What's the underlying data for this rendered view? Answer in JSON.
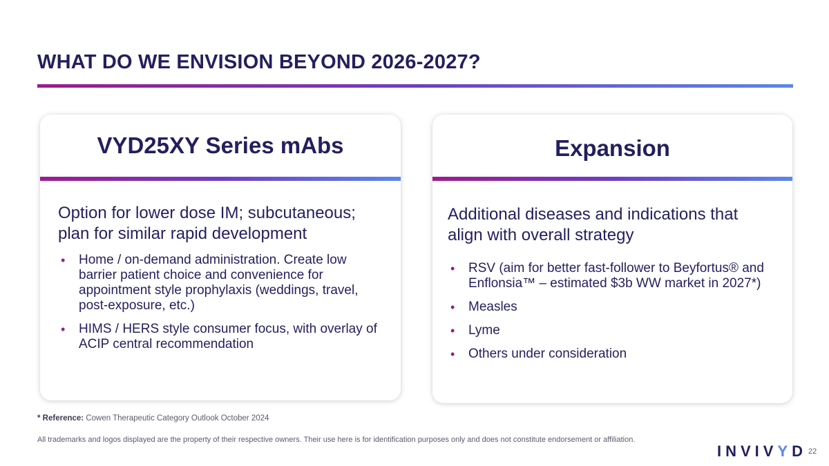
{
  "slide": {
    "title": "WHAT DO WE ENVISION BEYOND 2026-2027?",
    "page_number": "22"
  },
  "left_card": {
    "heading": "VYD25XY Series mAbs",
    "lead": "Option for lower dose IM; subcutaneous; plan for similar rapid development",
    "bullets": [
      "Home / on-demand administration.  Create low barrier patient choice and convenience for appointment style prophylaxis (weddings, travel, post-exposure, etc.)",
      "HIMS / HERS style consumer focus, with overlay of ACIP central recommendation"
    ]
  },
  "right_card": {
    "heading": "Expansion",
    "lead": "Additional diseases and indications that align with overall strategy",
    "bullets": [
      "RSV (aim for better fast-follower to Beyfortus® and Enflonsia™ – estimated $3b WW market in 2027*)",
      "Measles",
      "Lyme",
      "Others under consideration"
    ]
  },
  "footer": {
    "reference_label": "* Reference:",
    "reference_text": "Cowen Therapeutic Category Outlook October 2024",
    "disclaimer": "All trademarks and logos displayed are the property of their respective owners. Their use here is for identification purposes only and does not constitute endorsement or affiliation.",
    "logo_main": "INVIV",
    "logo_accent": "Y",
    "logo_end": "D"
  },
  "colors": {
    "navy": "#231f5e",
    "magenta": "#9c1b8e",
    "blue": "#5b86ea"
  },
  "bullet_glyph": "•"
}
